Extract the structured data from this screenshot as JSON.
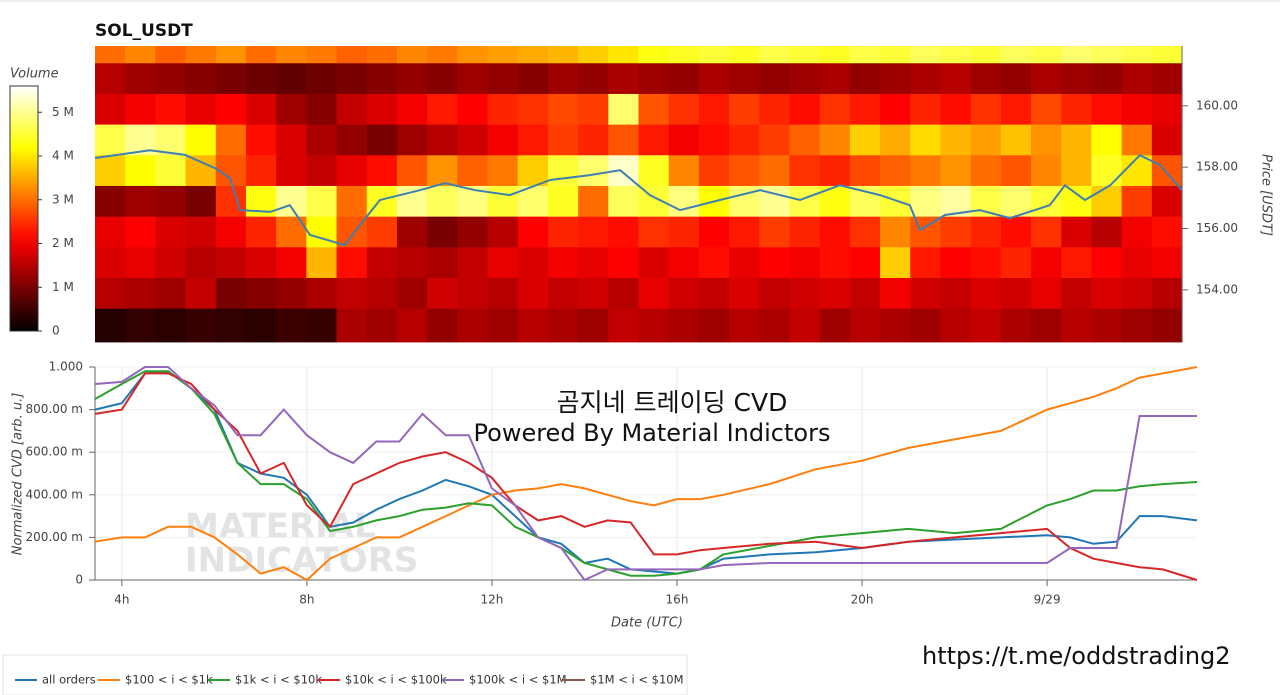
{
  "chart_data": [
    {
      "type": "heatmap",
      "title": "SOL_USDT",
      "ylabel": "Price [USDT]",
      "axis_side": "right",
      "xlim": [
        3.42,
        27.18
      ],
      "ylim": [
        152.3,
        161.95
      ],
      "yticks": [
        {
          "value": 154,
          "label": "154.00"
        },
        {
          "value": 156,
          "label": "156.00"
        },
        {
          "value": 158,
          "label": "158.00"
        },
        {
          "value": 160,
          "label": "160.00"
        }
      ],
      "colormap": "hot",
      "colorbar": {
        "title": "Volume",
        "clim": [
          0,
          5600000
        ],
        "ticks": [
          0,
          {
            "value": 1000000,
            "label": "1 M"
          },
          {
            "value": 2000000,
            "label": "2 M"
          },
          {
            "value": 3000000,
            "label": "3 M"
          },
          {
            "value": 4000000,
            "label": "4 M"
          },
          {
            "value": 5000000,
            "label": "5 M"
          }
        ]
      },
      "x_edges": [
        3.42,
        4.08,
        4.74,
        5.4,
        6.06,
        6.72,
        7.38,
        8.04,
        8.7,
        9.36,
        10.02,
        10.68,
        11.34,
        12.0,
        12.66,
        13.32,
        13.98,
        14.64,
        15.3,
        15.96,
        16.62,
        17.28,
        17.94,
        18.6,
        19.26,
        19.92,
        20.58,
        21.24,
        21.9,
        22.56,
        23.22,
        23.88,
        24.54,
        25.2,
        25.86,
        26.52,
        27.18
      ],
      "y_edges": [
        152.3,
        153.4,
        154.4,
        155.4,
        156.4,
        157.4,
        158.4,
        159.4,
        160.4,
        161.4,
        161.95
      ],
      "z": [
        [
          300000,
          400000,
          350000,
          450000,
          400000,
          350000,
          500000,
          450000,
          1400000,
          1300000,
          1500000,
          1200000,
          1400000,
          1300000,
          1500000,
          1400000,
          1300000,
          1600000,
          1500000,
          1400000,
          1300000,
          1500000,
          1400000,
          1600000,
          1300000,
          1500000,
          1400000,
          1300000,
          1500000,
          1600000,
          1400000,
          1300000,
          1500000,
          1400000,
          1300000,
          1200000
        ],
        [
          1500000,
          1400000,
          1300000,
          1600000,
          1000000,
          1100000,
          1200000,
          1400000,
          1600000,
          1500000,
          1300000,
          1700000,
          1600000,
          1500000,
          1800000,
          1600000,
          1700000,
          1500000,
          1900000,
          1700000,
          1600000,
          1800000,
          1600000,
          1700000,
          1800000,
          1600000,
          2000000,
          1700000,
          1600000,
          1800000,
          1700000,
          1900000,
          1600000,
          1800000,
          1700000,
          1500000
        ],
        [
          1800000,
          1900000,
          1700000,
          1500000,
          1600000,
          1800000,
          2000000,
          3600000,
          2200000,
          1600000,
          1500000,
          1400000,
          1600000,
          1900000,
          1800000,
          2000000,
          1900000,
          2100000,
          1800000,
          2000000,
          2200000,
          1900000,
          2100000,
          2000000,
          2200000,
          2100000,
          3800000,
          2300000,
          2100000,
          2200000,
          2400000,
          2000000,
          2300000,
          2100000,
          1900000,
          2000000
        ],
        [
          1900000,
          2100000,
          1800000,
          1700000,
          2000000,
          2400000,
          3000000,
          4200000,
          2800000,
          2600000,
          1300000,
          1000000,
          1200000,
          1500000,
          2100000,
          2400000,
          2300000,
          2200000,
          2500000,
          2400000,
          2100000,
          2300000,
          2600000,
          2400000,
          2200000,
          2500000,
          3200000,
          2800000,
          2600000,
          2400000,
          2200000,
          2500000,
          1800000,
          1500000,
          2000000,
          2200000
        ],
        [
          1100000,
          1300000,
          1200000,
          1000000,
          2500000,
          4300000,
          5000000,
          4600000,
          3000000,
          4400000,
          5000000,
          4700000,
          4900000,
          4500000,
          4800000,
          4400000,
          3000000,
          4700000,
          4500000,
          4900000,
          4200000,
          4800000,
          5000000,
          4600000,
          4300000,
          4700000,
          4500000,
          4900000,
          5100000,
          4600000,
          4800000,
          4500000,
          4300000,
          3800000,
          2600000,
          1800000
        ],
        [
          3800000,
          4200000,
          4500000,
          3600000,
          2800000,
          2400000,
          1800000,
          1600000,
          1900000,
          2200000,
          2800000,
          3300000,
          2900000,
          3100000,
          3800000,
          4500000,
          4800000,
          5300000,
          4400000,
          3200000,
          2600000,
          2800000,
          3000000,
          2500000,
          2400000,
          2700000,
          2900000,
          3100000,
          3300000,
          3000000,
          2800000,
          3200000,
          3600000,
          4400000,
          4000000,
          2800000
        ],
        [
          4600000,
          5000000,
          4800000,
          4200000,
          3000000,
          2200000,
          1800000,
          1400000,
          1200000,
          1000000,
          1300000,
          1500000,
          1700000,
          2000000,
          2300000,
          2600000,
          2400000,
          2800000,
          2300000,
          2000000,
          2200000,
          2400000,
          2600000,
          2900000,
          3200000,
          3800000,
          3500000,
          3900000,
          3600000,
          3400000,
          3700000,
          3300000,
          3600000,
          4200000,
          3100000,
          1800000
        ],
        [
          1800000,
          2000000,
          2200000,
          1900000,
          2100000,
          1800000,
          1300000,
          1100000,
          1600000,
          1800000,
          2000000,
          2300000,
          2100000,
          2400000,
          2500000,
          2700000,
          2600000,
          4800000,
          2800000,
          2500000,
          2300000,
          2600000,
          2400000,
          2200000,
          2500000,
          2300000,
          2100000,
          2400000,
          2200000,
          2500000,
          2300000,
          2700000,
          2400000,
          2200000,
          2000000,
          1900000
        ],
        [
          1500000,
          1300000,
          1200000,
          1100000,
          1000000,
          900000,
          800000,
          900000,
          1000000,
          1100000,
          1200000,
          1100000,
          1300000,
          1200000,
          1100000,
          1300000,
          1200000,
          1400000,
          1300000,
          1200000,
          1400000,
          1300000,
          1200000,
          1300000,
          1400000,
          1200000,
          1300000,
          1400000,
          1500000,
          1300000,
          1200000,
          1400000,
          1300000,
          1200000,
          1400000,
          1300000
        ],
        [
          3000000,
          3200000,
          2900000,
          3100000,
          3300000,
          3000000,
          3200000,
          3100000,
          2900000,
          3000000,
          3200000,
          3100000,
          3300000,
          3400000,
          3500000,
          3600000,
          3800000,
          4000000,
          4300000,
          4400000,
          4500000,
          4400000,
          4600000,
          4500000,
          4400000,
          4600000,
          4500000,
          4700000,
          4600000,
          4500000,
          4700000,
          4600000,
          4800000,
          4700000,
          4600000,
          4500000
        ]
      ],
      "line": {
        "color": "#3d7fb3",
        "x": [
          3.42,
          4.62,
          5.39,
          6.04,
          6.37,
          6.59,
          7.25,
          7.68,
          8.12,
          8.88,
          9.21,
          9.65,
          10.52,
          11.07,
          11.73,
          12.49,
          13.37,
          14.24,
          14.9,
          15.55,
          16.21,
          17.08,
          17.96,
          18.83,
          19.7,
          20.58,
          21.23,
          21.45,
          22.0,
          22.76,
          23.42,
          24.29,
          24.62,
          25.06,
          25.61,
          26.26,
          26.7,
          27.18
        ],
        "values": [
          158.3,
          158.55,
          158.4,
          157.97,
          157.64,
          156.6,
          156.54,
          156.76,
          155.79,
          155.46,
          156.11,
          156.93,
          157.25,
          157.48,
          157.25,
          157.09,
          157.58,
          157.74,
          157.9,
          157.09,
          156.6,
          156.93,
          157.25,
          156.93,
          157.41,
          157.09,
          156.76,
          155.95,
          156.44,
          156.6,
          156.34,
          156.76,
          157.41,
          156.93,
          157.41,
          158.39,
          158.07,
          157.25
        ]
      }
    },
    {
      "type": "line",
      "xlabel": "Date (UTC)",
      "ylabel": "Normalized CVD [arb. u.]",
      "xlim": [
        3.42,
        27.24
      ],
      "ylim": [
        0,
        1
      ],
      "xticks": [
        {
          "value": 4,
          "label": "4h"
        },
        {
          "value": 8,
          "label": "8h"
        },
        {
          "value": 12,
          "label": "12h"
        },
        {
          "value": 16,
          "label": "16h"
        },
        {
          "value": 20,
          "label": "20h"
        },
        {
          "value": 24,
          "label": "9/29"
        }
      ],
      "yticks": [
        0,
        {
          "value": 0.2,
          "label": "200.00 m"
        },
        {
          "value": 0.4,
          "label": "400.00 m"
        },
        {
          "value": 0.6,
          "label": "600.00 m"
        },
        {
          "value": 0.8,
          "label": "800.00 m"
        },
        {
          "value": 1,
          "label": "1.000"
        }
      ],
      "grid": true,
      "legend": "bottom-left",
      "annotations": [
        "곰지네 트레이딩 CVD",
        "Powered By Material Indictors"
      ],
      "watermark": [
        "MATERIAL",
        "INDICATORS"
      ],
      "x": [
        3.42,
        4,
        4.5,
        5,
        5.5,
        6,
        6.5,
        7,
        7.5,
        8,
        8.5,
        9,
        9.5,
        10,
        10.5,
        11,
        11.5,
        12,
        12.5,
        13,
        13.5,
        14,
        14.5,
        15,
        15.5,
        16,
        16.5,
        17,
        18,
        19,
        20,
        21,
        22,
        23,
        24,
        24.5,
        25,
        25.5,
        26,
        26.5,
        27.24
      ],
      "series": [
        {
          "name": "all orders",
          "color": "#1f77b4",
          "values": [
            0.8,
            0.83,
            0.97,
            0.98,
            0.9,
            0.8,
            0.55,
            0.5,
            0.48,
            0.4,
            0.25,
            0.27,
            0.33,
            0.38,
            0.42,
            0.47,
            0.44,
            0.4,
            0.3,
            0.2,
            0.17,
            0.08,
            0.1,
            0.05,
            0.04,
            0.03,
            0.05,
            0.1,
            0.12,
            0.13,
            0.15,
            0.18,
            0.19,
            0.2,
            0.21,
            0.2,
            0.17,
            0.18,
            0.3,
            0.3,
            0.28
          ]
        },
        {
          "name": "$100 < i < $1k",
          "color": "#ff7f0e",
          "values": [
            0.18,
            0.2,
            0.2,
            0.25,
            0.25,
            0.2,
            0.12,
            0.03,
            0.06,
            0.0,
            0.1,
            0.15,
            0.2,
            0.2,
            0.25,
            0.3,
            0.35,
            0.4,
            0.42,
            0.43,
            0.45,
            0.43,
            0.4,
            0.37,
            0.35,
            0.38,
            0.38,
            0.4,
            0.45,
            0.52,
            0.56,
            0.62,
            0.66,
            0.7,
            0.8,
            0.83,
            0.86,
            0.9,
            0.95,
            0.97,
            1.0
          ]
        },
        {
          "name": "$1k < i < $10k",
          "color": "#2ca02c",
          "values": [
            0.85,
            0.92,
            0.98,
            0.98,
            0.9,
            0.78,
            0.55,
            0.45,
            0.45,
            0.38,
            0.23,
            0.25,
            0.28,
            0.3,
            0.33,
            0.34,
            0.36,
            0.35,
            0.25,
            0.2,
            0.15,
            0.08,
            0.05,
            0.02,
            0.02,
            0.03,
            0.05,
            0.12,
            0.16,
            0.2,
            0.22,
            0.24,
            0.22,
            0.24,
            0.35,
            0.38,
            0.42,
            0.42,
            0.44,
            0.45,
            0.46
          ]
        },
        {
          "name": "$10k < i < $100k",
          "color": "#d62728",
          "values": [
            0.78,
            0.8,
            0.97,
            0.97,
            0.92,
            0.8,
            0.7,
            0.5,
            0.55,
            0.35,
            0.25,
            0.45,
            0.5,
            0.55,
            0.58,
            0.6,
            0.55,
            0.48,
            0.35,
            0.28,
            0.3,
            0.25,
            0.28,
            0.27,
            0.12,
            0.12,
            0.14,
            0.15,
            0.17,
            0.18,
            0.15,
            0.18,
            0.2,
            0.22,
            0.24,
            0.15,
            0.1,
            0.08,
            0.06,
            0.05,
            0.0
          ]
        },
        {
          "name": "$100k < i < $1M",
          "color": "#9467bd",
          "values": [
            0.92,
            0.93,
            1.0,
            1.0,
            0.9,
            0.82,
            0.68,
            0.68,
            0.8,
            0.68,
            0.6,
            0.55,
            0.65,
            0.65,
            0.78,
            0.68,
            0.68,
            0.43,
            0.35,
            0.2,
            0.15,
            0.0,
            0.05,
            0.05,
            0.05,
            0.05,
            0.05,
            0.07,
            0.08,
            0.08,
            0.08,
            0.08,
            0.08,
            0.08,
            0.08,
            0.15,
            0.15,
            0.15,
            0.77,
            0.77,
            0.77
          ]
        },
        {
          "name": "$1M < i < $10M",
          "color": "#8c564b",
          "values": [
            null,
            null,
            null,
            null,
            null,
            null,
            null,
            null,
            null,
            null,
            null,
            null,
            null,
            null,
            null,
            null,
            null,
            null,
            null,
            null,
            null,
            null,
            null,
            null,
            null,
            null,
            null,
            null,
            null,
            null,
            null,
            null,
            null,
            null,
            null,
            null,
            null,
            null,
            null,
            null,
            null
          ]
        }
      ]
    }
  ],
  "footer_link": "https://t.me/oddstrading2"
}
